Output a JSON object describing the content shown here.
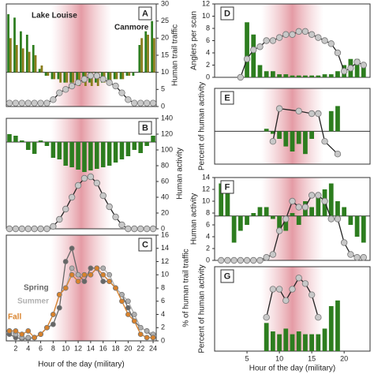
{
  "chart_data": [
    {
      "type": "bar",
      "title": "A",
      "ylabel": "Human trail traffic",
      "xlim": [
        0.5,
        24.5
      ],
      "ylim": [
        0,
        30
      ],
      "yticks": [
        0,
        5,
        10,
        15,
        20,
        25,
        30
      ],
      "baseline": 10,
      "annotations": [
        "Lake Louise",
        "Canmore"
      ],
      "series": [
        {
          "type": "bar",
          "name": "Lake Louise",
          "color": "#2d7d1f",
          "x": [
            1,
            2,
            3,
            4,
            5,
            6,
            7,
            8,
            9,
            10,
            11,
            12,
            13,
            14,
            15,
            16,
            17,
            18,
            19,
            20,
            21,
            22,
            23,
            24
          ],
          "values": [
            27,
            26,
            22,
            21,
            18,
            11,
            9,
            8,
            8,
            7,
            7,
            7,
            7,
            7,
            7,
            7,
            7,
            8,
            8,
            9,
            9,
            18,
            22,
            25
          ]
        },
        {
          "type": "bar",
          "name": "Canmore",
          "color": "#8a7d1c",
          "x": [
            1,
            2,
            3,
            4,
            5,
            6,
            7,
            8,
            9,
            10,
            11,
            12,
            13,
            14,
            15,
            16,
            17,
            18,
            19,
            20,
            21,
            22,
            23,
            24
          ],
          "values": [
            20,
            18,
            17,
            16,
            15,
            12,
            9,
            8,
            7,
            7,
            7,
            6,
            6,
            6,
            6,
            7,
            7,
            8,
            8,
            9,
            10,
            20,
            21,
            20
          ]
        },
        {
          "type": "line",
          "color": "#c8c8c8",
          "x": [
            1,
            2,
            3,
            4,
            5,
            6,
            7,
            8,
            9,
            10,
            11,
            12,
            13,
            14,
            15,
            16,
            17,
            18,
            19,
            20,
            21,
            22,
            23,
            24
          ],
          "values": [
            1,
            1,
            1,
            1,
            1,
            1,
            1,
            2,
            4,
            5,
            6,
            7,
            8,
            9,
            9,
            8,
            7,
            6,
            4,
            2,
            1,
            1,
            1,
            1
          ]
        }
      ]
    },
    {
      "type": "bar",
      "title": "B",
      "ylabel": "Human activity",
      "xlim": [
        0.5,
        24.5
      ],
      "ylim": [
        0,
        140
      ],
      "yticks": [
        0,
        20,
        40,
        60,
        80,
        100,
        120,
        140
      ],
      "baseline": 110,
      "series": [
        {
          "type": "bar",
          "color": "#2d7d1f",
          "x": [
            1,
            2,
            3,
            4,
            5,
            6,
            7,
            8,
            9,
            10,
            11,
            12,
            13,
            14,
            15,
            16,
            17,
            18,
            19,
            20,
            21,
            22,
            23,
            24
          ],
          "values": [
            120,
            118,
            112,
            100,
            95,
            112,
            105,
            90,
            88,
            80,
            78,
            75,
            72,
            74,
            76,
            78,
            80,
            84,
            88,
            92,
            100,
            96,
            105,
            118
          ]
        },
        {
          "type": "line",
          "color": "#c8c8c8",
          "x": [
            1,
            2,
            3,
            4,
            5,
            6,
            7,
            8,
            9,
            10,
            11,
            12,
            13,
            14,
            15,
            16,
            17,
            18,
            19,
            20,
            21,
            22,
            23,
            24
          ],
          "values": [
            0,
            0,
            0,
            0,
            0,
            0,
            0,
            3,
            12,
            25,
            40,
            55,
            64,
            66,
            58,
            42,
            28,
            15,
            5,
            0,
            0,
            0,
            0,
            0
          ]
        }
      ]
    },
    {
      "type": "bar",
      "title": "C",
      "ylabel": "% of human trail traffic",
      "xlabel": "Hour of the day (military)",
      "xlim": [
        0.5,
        24.5
      ],
      "ylim": [
        0,
        16
      ],
      "yticks": [
        0,
        2,
        4,
        6,
        8,
        10,
        12,
        14,
        16
      ],
      "xticks": [
        2,
        4,
        6,
        8,
        10,
        12,
        14,
        16,
        18,
        20,
        22,
        24
      ],
      "series": [
        {
          "type": "line",
          "name": "Spring",
          "color": "#666666",
          "x": [
            1,
            2,
            3,
            4,
            5,
            6,
            7,
            8,
            9,
            10,
            11,
            12,
            13,
            14,
            15,
            16,
            17,
            18,
            19,
            20,
            21,
            22,
            23,
            24
          ],
          "values": [
            1,
            0.5,
            0.3,
            0.3,
            0.5,
            1,
            2,
            2.5,
            5,
            12,
            14,
            10,
            9,
            11,
            11,
            9,
            9,
            8,
            7,
            5,
            3,
            2,
            1.5,
            0.5
          ]
        },
        {
          "type": "line",
          "name": "Summer",
          "color": "#b0b0b0",
          "x": [
            1,
            2,
            3,
            4,
            5,
            6,
            7,
            8,
            9,
            10,
            11,
            12,
            13,
            14,
            15,
            16,
            17,
            18,
            19,
            20,
            21,
            22,
            23,
            24
          ],
          "values": [
            1.5,
            1,
            0.5,
            0.5,
            0.5,
            1,
            2,
            4,
            7,
            8,
            11,
            10,
            10,
            10,
            11,
            11,
            10,
            8,
            7,
            6,
            4,
            2,
            1.5,
            1
          ]
        },
        {
          "type": "line",
          "name": "Fall",
          "color": "#d9822b",
          "x": [
            1,
            2,
            3,
            4,
            5,
            6,
            7,
            8,
            9,
            10,
            11,
            12,
            13,
            14,
            15,
            16,
            17,
            18,
            19,
            20,
            21,
            22,
            23,
            24
          ],
          "values": [
            1.5,
            1.5,
            1,
            1.5,
            0.5,
            1,
            2,
            4,
            7,
            8,
            10,
            9,
            10,
            10,
            11,
            10,
            9,
            8,
            6,
            4,
            3,
            1,
            0.5,
            0.5
          ]
        }
      ]
    },
    {
      "type": "bar",
      "title": "D",
      "ylabel": "Anglers per scan",
      "xlim": [
        0,
        24
      ],
      "ylim": [
        0,
        12
      ],
      "yticks": [
        0,
        2,
        4,
        6,
        8,
        10,
        12
      ],
      "series": [
        {
          "type": "bar",
          "color": "#2d7d1f",
          "x": [
            4,
            5,
            6,
            7,
            8,
            9,
            10,
            11,
            12,
            13,
            14,
            15,
            16,
            17,
            18,
            19,
            20,
            21,
            22,
            23
          ],
          "values": [
            0,
            9,
            7,
            2,
            1,
            1,
            0.5,
            0.5,
            0.3,
            0.3,
            0.3,
            0.3,
            0.3,
            0.5,
            0.5,
            1,
            2,
            3,
            3,
            2
          ]
        },
        {
          "type": "line",
          "color": "#c8c8c8",
          "x": [
            4,
            5,
            6,
            7,
            8,
            9,
            10,
            11,
            12,
            13,
            14,
            15,
            16,
            17,
            18,
            19,
            20,
            21,
            22,
            23
          ],
          "values": [
            0,
            3,
            4.5,
            5,
            6,
            6,
            6.5,
            7,
            7,
            7.5,
            7.5,
            7,
            6.5,
            6,
            5.5,
            4,
            1,
            1.5,
            2.5,
            2
          ]
        }
      ]
    },
    {
      "type": "bar",
      "title": "E",
      "ylabel": "Percent of human activity",
      "xlim": [
        0,
        24
      ],
      "ylim": [
        0,
        30
      ],
      "baseline": 13,
      "series": [
        {
          "type": "bar",
          "color": "#2d7d1f",
          "x": [
            8,
            9,
            10,
            11,
            12,
            13,
            14,
            15,
            16,
            17,
            18,
            19,
            20,
            21
          ],
          "values": [
            14,
            12,
            10,
            7,
            5,
            8,
            4,
            10,
            13,
            13,
            21,
            23,
            13,
            13
          ]
        },
        {
          "type": "line",
          "color": "#c8c8c8",
          "x": [
            9,
            10,
            13,
            15,
            16,
            17,
            19
          ],
          "values": [
            9,
            22,
            21,
            20,
            20,
            9,
            4
          ]
        }
      ]
    },
    {
      "type": "bar",
      "title": "F",
      "ylabel": "Human activity",
      "xlim": [
        0,
        24
      ],
      "ylim": [
        0,
        14
      ],
      "yticks": [
        0,
        2,
        4,
        6,
        8,
        10,
        12,
        14
      ],
      "baseline": 7.5,
      "series": [
        {
          "type": "bar",
          "color": "#2d7d1f",
          "x": [
            1,
            2,
            3,
            4,
            5,
            6,
            7,
            8,
            9,
            10,
            11,
            12,
            13,
            14,
            15,
            16,
            17,
            18,
            19,
            20,
            21,
            22,
            23
          ],
          "values": [
            13,
            12,
            3,
            5,
            6,
            8,
            9,
            9,
            7,
            5,
            5,
            8,
            6,
            10,
            9,
            11,
            12,
            13,
            10,
            9,
            6,
            4,
            3
          ]
        },
        {
          "type": "line",
          "color": "#c8c8c8",
          "x": [
            1,
            2,
            3,
            4,
            5,
            6,
            7,
            8,
            9,
            10,
            11,
            12,
            13,
            14,
            15,
            16,
            17,
            18,
            19,
            20,
            21,
            22,
            23
          ],
          "values": [
            0,
            0,
            0,
            0,
            0,
            0,
            0,
            0.5,
            1,
            5,
            7,
            10,
            9,
            9,
            11,
            11,
            10,
            7,
            7,
            3,
            1,
            0.5,
            0.5
          ]
        }
      ]
    },
    {
      "type": "bar",
      "title": "G",
      "ylabel": "Percent of human activity",
      "xlabel": "Hour of the day (military)",
      "xlim": [
        0,
        24
      ],
      "ylim": [
        0,
        15
      ],
      "xticks": [
        5,
        10,
        15,
        20
      ],
      "series": [
        {
          "type": "bar",
          "color": "#2d7d1f",
          "x": [
            8,
            9,
            10,
            11,
            12,
            13,
            14,
            15,
            16,
            17,
            18,
            19
          ],
          "values": [
            5,
            3.5,
            3,
            4,
            3,
            3.5,
            3,
            3,
            3,
            4,
            8,
            9
          ]
        },
        {
          "type": "line",
          "color": "#c8c8c8",
          "x": [
            8,
            9,
            10,
            11,
            12,
            13,
            14,
            15,
            16
          ],
          "values": [
            6,
            11,
            11,
            9,
            11,
            13,
            12,
            10,
            6
          ]
        }
      ]
    }
  ]
}
